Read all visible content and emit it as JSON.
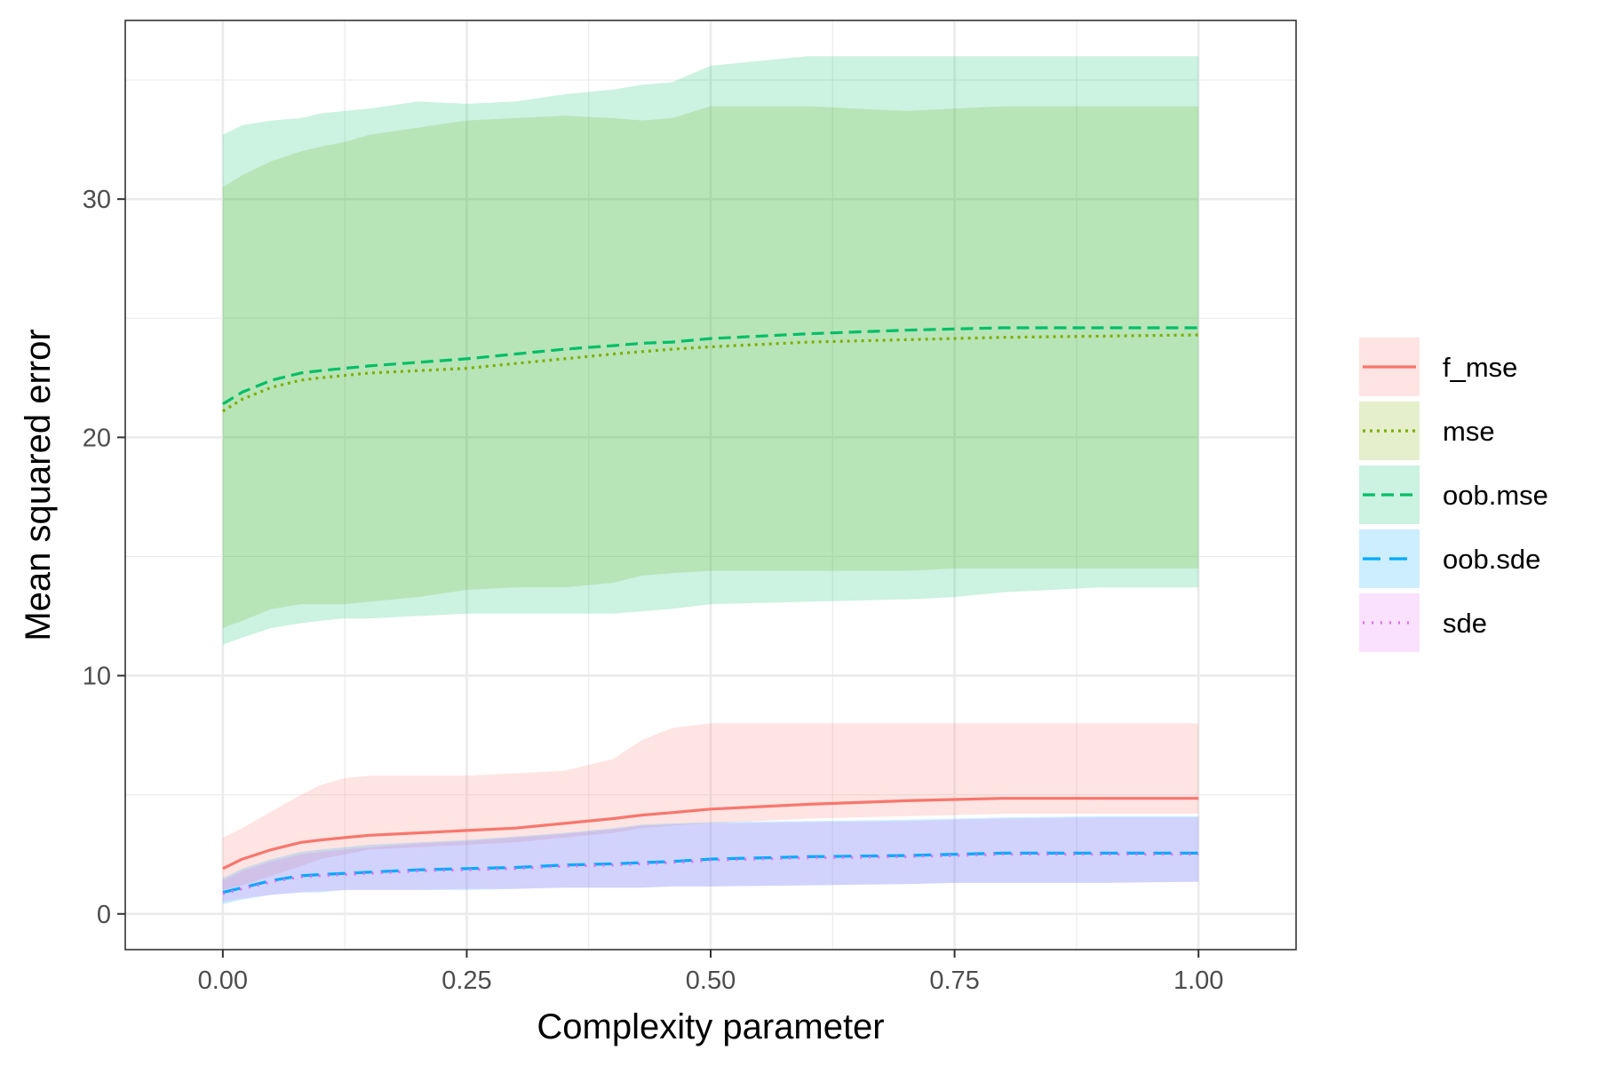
{
  "chart_data": {
    "type": "line",
    "title": "",
    "xlabel": "Complexity parameter",
    "ylabel": "Mean squared error",
    "xlim": [
      -0.1,
      1.1
    ],
    "ylim": [
      -1.5,
      37.5
    ],
    "x_ticks": [
      0.0,
      0.25,
      0.5,
      0.75,
      1.0
    ],
    "x_tick_labels": [
      "0.00",
      "0.25",
      "0.50",
      "0.75",
      "1.00"
    ],
    "y_ticks": [
      0,
      10,
      20,
      30
    ],
    "y_tick_labels": [
      "0",
      "10",
      "20",
      "30"
    ],
    "grid": true,
    "legend_position": "right",
    "x": [
      0.0,
      0.02,
      0.05,
      0.08,
      0.1,
      0.125,
      0.15,
      0.2,
      0.25,
      0.3,
      0.35,
      0.4,
      0.43,
      0.46,
      0.5,
      0.6,
      0.7,
      0.75,
      0.8,
      0.9,
      1.0
    ],
    "series": [
      {
        "name": "f_mse",
        "color": "#F8766D",
        "fill": "#F8766D",
        "dash": "solid",
        "values": [
          1.9,
          2.3,
          2.7,
          3.0,
          3.1,
          3.2,
          3.3,
          3.4,
          3.5,
          3.6,
          3.8,
          4.0,
          4.15,
          4.25,
          4.4,
          4.6,
          4.75,
          4.8,
          4.85,
          4.85,
          4.85
        ],
        "lower": [
          1.0,
          1.2,
          1.6,
          2.0,
          2.3,
          2.5,
          2.7,
          2.8,
          2.9,
          3.0,
          3.2,
          3.4,
          3.6,
          3.7,
          3.8,
          4.0,
          4.1,
          4.15,
          4.2,
          4.2,
          4.2
        ],
        "upper": [
          3.2,
          3.6,
          4.3,
          5.0,
          5.4,
          5.7,
          5.8,
          5.8,
          5.8,
          5.9,
          6.0,
          6.5,
          7.3,
          7.8,
          8.0,
          8.0,
          8.0,
          8.0,
          8.0,
          8.0,
          8.0
        ]
      },
      {
        "name": "mse",
        "color": "#7CAE00",
        "fill": "#7CAE00",
        "dash": "3,5",
        "values": [
          21.1,
          21.6,
          22.1,
          22.4,
          22.5,
          22.6,
          22.7,
          22.8,
          22.9,
          23.1,
          23.3,
          23.5,
          23.6,
          23.7,
          23.8,
          24.0,
          24.1,
          24.15,
          24.2,
          24.25,
          24.3
        ],
        "lower": [
          12.0,
          12.3,
          12.8,
          13.0,
          13.0,
          13.0,
          13.1,
          13.3,
          13.6,
          13.7,
          13.7,
          13.9,
          14.2,
          14.3,
          14.4,
          14.4,
          14.4,
          14.5,
          14.5,
          14.5,
          14.5
        ],
        "upper": [
          30.5,
          31.0,
          31.6,
          32.0,
          32.2,
          32.4,
          32.7,
          33.0,
          33.3,
          33.4,
          33.5,
          33.4,
          33.3,
          33.4,
          33.9,
          33.9,
          33.7,
          33.8,
          33.9,
          33.9,
          33.9
        ]
      },
      {
        "name": "oob.mse",
        "color": "#00BE67",
        "fill": "#00BE67",
        "dash": "14,7",
        "values": [
          21.4,
          21.9,
          22.4,
          22.7,
          22.8,
          22.9,
          23.0,
          23.15,
          23.3,
          23.5,
          23.7,
          23.85,
          23.95,
          24.0,
          24.15,
          24.35,
          24.5,
          24.55,
          24.6,
          24.6,
          24.6
        ],
        "lower": [
          11.3,
          11.6,
          12.0,
          12.2,
          12.3,
          12.4,
          12.4,
          12.5,
          12.6,
          12.6,
          12.6,
          12.6,
          12.7,
          12.8,
          13.0,
          13.1,
          13.2,
          13.3,
          13.5,
          13.7,
          13.7
        ],
        "upper": [
          32.7,
          33.1,
          33.3,
          33.4,
          33.6,
          33.7,
          33.8,
          34.1,
          34.0,
          34.1,
          34.4,
          34.6,
          34.8,
          34.9,
          35.6,
          36.0,
          36.0,
          36.0,
          36.0,
          36.0,
          36.0
        ]
      },
      {
        "name": "oob.sde",
        "color": "#00A9FF",
        "fill": "#00A9FF",
        "dash": "20,10",
        "values": [
          0.9,
          1.1,
          1.4,
          1.6,
          1.65,
          1.7,
          1.75,
          1.85,
          1.9,
          1.95,
          2.05,
          2.1,
          2.15,
          2.2,
          2.3,
          2.4,
          2.45,
          2.5,
          2.55,
          2.55,
          2.55
        ],
        "lower": [
          0.4,
          0.6,
          0.8,
          0.9,
          0.9,
          1.0,
          1.0,
          1.0,
          1.0,
          1.05,
          1.1,
          1.1,
          1.1,
          1.15,
          1.15,
          1.2,
          1.25,
          1.3,
          1.3,
          1.3,
          1.35
        ],
        "upper": [
          1.5,
          1.9,
          2.3,
          2.6,
          2.7,
          2.8,
          2.9,
          3.0,
          3.1,
          3.25,
          3.4,
          3.6,
          3.75,
          3.8,
          3.85,
          3.9,
          3.95,
          4.0,
          4.05,
          4.1,
          4.1
        ]
      },
      {
        "name": "sde",
        "color": "#E76BF3",
        "fill": "#E76BF3",
        "dash": "2,8",
        "values": [
          0.85,
          1.05,
          1.35,
          1.55,
          1.6,
          1.65,
          1.7,
          1.8,
          1.85,
          1.9,
          2.0,
          2.05,
          2.1,
          2.15,
          2.25,
          2.35,
          2.4,
          2.45,
          2.5,
          2.5,
          2.5
        ],
        "lower": [
          0.5,
          0.65,
          0.8,
          0.9,
          0.95,
          1.0,
          1.0,
          1.0,
          1.05,
          1.05,
          1.1,
          1.1,
          1.1,
          1.15,
          1.15,
          1.2,
          1.25,
          1.3,
          1.3,
          1.3,
          1.35
        ],
        "upper": [
          1.4,
          1.8,
          2.2,
          2.5,
          2.6,
          2.7,
          2.8,
          2.95,
          3.05,
          3.2,
          3.35,
          3.55,
          3.7,
          3.75,
          3.8,
          3.85,
          3.9,
          3.95,
          4.0,
          4.05,
          4.05
        ]
      }
    ]
  }
}
